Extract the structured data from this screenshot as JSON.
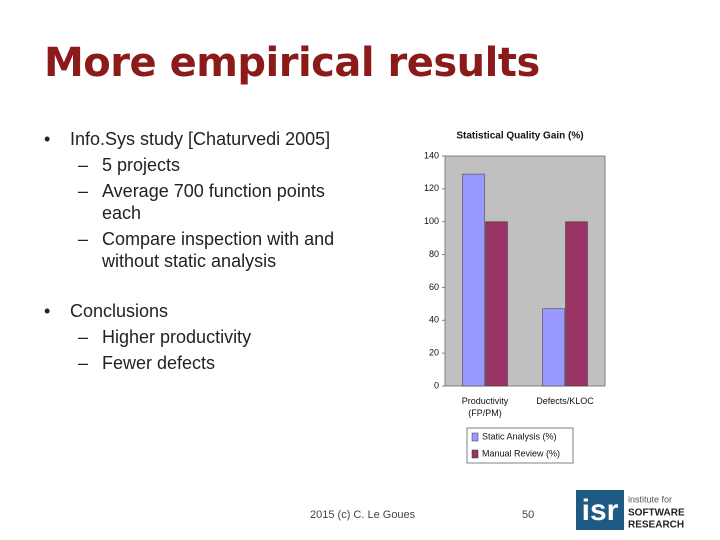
{
  "title": "More empirical results",
  "bullets": [
    {
      "text": "Info.Sys study [Chaturvedi 2005]",
      "sub": [
        "5 projects",
        "Average 700 function points each",
        "Compare inspection with and without static analysis"
      ]
    },
    {
      "text": "Conclusions",
      "sub": [
        "Higher productivity",
        "Fewer defects"
      ]
    }
  ],
  "footer": {
    "credit": "2015 (c) C. Le Goues",
    "page": "50"
  },
  "logo": {
    "mark": "isr",
    "line1": "institute for",
    "line2": "SOFTWARE",
    "line3": "RESEARCH"
  },
  "chart_data": {
    "type": "bar",
    "title": "Statistical Quality Gain (%)",
    "categories": [
      "Productivity (FP/PM)",
      "Defects/KLOC"
    ],
    "series": [
      {
        "name": "Static Analysis (%)",
        "color": "#9999ff",
        "values": [
          129,
          47
        ]
      },
      {
        "name": "Manual Review (%)",
        "color": "#993366",
        "values": [
          100,
          100
        ]
      }
    ],
    "ylim": [
      0,
      140
    ],
    "yticks": [
      0,
      20,
      40,
      60,
      80,
      100,
      120,
      140
    ],
    "grid": false
  }
}
